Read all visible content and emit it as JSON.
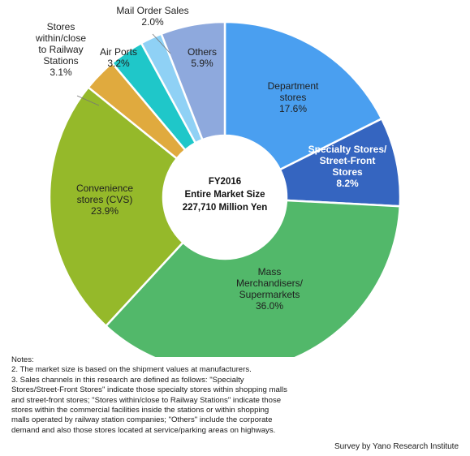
{
  "chart_data": {
    "type": "pie",
    "donut": true,
    "center_text": [
      "FY2016",
      "Entire Market Size",
      "227,710 Million Yen"
    ],
    "slices": [
      {
        "label": [
          "Department",
          "stores"
        ],
        "value_label": "17.6%",
        "value": 17.6,
        "color": "#4a9ff0"
      },
      {
        "label": [
          "Specialty Stores/",
          "Street-Front",
          "Stores"
        ],
        "value_label": "8.2%",
        "value": 8.2,
        "color": "#3565c0"
      },
      {
        "label": [
          "Mass",
          "Merchandisers/",
          "Supermarkets"
        ],
        "value_label": "36.0%",
        "value": 36.0,
        "color": "#52b86a"
      },
      {
        "label": [
          "Convenience",
          "stores (CVS)"
        ],
        "value_label": "23.9%",
        "value": 23.9,
        "color": "#95b92a"
      },
      {
        "label": [
          "Stores",
          "within/close",
          "to Railway",
          "Stations"
        ],
        "value_label": "3.1%",
        "value": 3.1,
        "color": "#e0aa3e"
      },
      {
        "label": [
          "Air Ports"
        ],
        "value_label": "3.2%",
        "value": 3.2,
        "color": "#1fc7c9"
      },
      {
        "label": [
          "Mail Order Sales"
        ],
        "value_label": "2.0%",
        "value": 2.0,
        "color": "#8fd1f5"
      },
      {
        "label": [
          "Others"
        ],
        "value_label": "5.9%",
        "value": 5.9,
        "color": "#8ea9dd"
      }
    ]
  },
  "notes": {
    "heading": "Notes:",
    "lines": [
      "2. The market size is based on the shipment values at manufacturers.",
      "3.  Sales channels in this research are defined as follows: \"Specialty",
      "Stores/Street-Front Stores\" indicate those specialty stores within shopping malls",
      "and street-front stores; \"Stores within/close to Railway Stations\" indicate those",
      "stores within the commercial facilities inside the stations or within shopping",
      "malls operated by railway station companies; \"Others\" include the corporate",
      "demand and also those stores located at service/parking areas on highways."
    ]
  },
  "source": "Survey by Yano Research Institute"
}
